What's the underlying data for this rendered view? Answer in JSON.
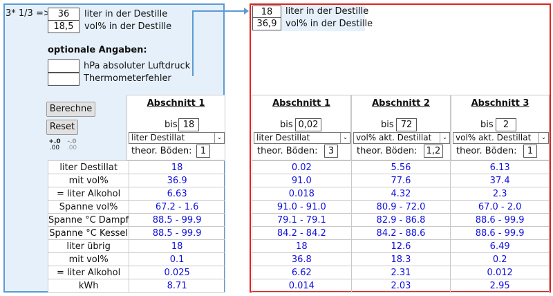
{
  "left": {
    "prefix": "3* 1/3 =>",
    "liter_value": "36",
    "liter_label": "liter in der Destille",
    "vol_value": "18,5",
    "vol_label": "vol% in der Destille",
    "optional_title": "optionale Angaben:",
    "pressure_value": "",
    "pressure_label": "hPa absoluter Luftdruck",
    "thermo_value": "",
    "thermo_label": "Thermometerfehler",
    "btn_calc": "Berechne",
    "btn_reset": "Reset",
    "icon_more_decimals": "+.0\n.00",
    "icon_less_decimals": "-.0\n.00",
    "section": {
      "title": "Abschnitt 1",
      "bis_label": "bis",
      "bis_value": "18",
      "select": "liter Destillat",
      "boeden_label": "theor. Böden:",
      "boeden_value": "1"
    },
    "rows": [
      {
        "label": "liter Destillat",
        "value": "18"
      },
      {
        "label": "mit vol%",
        "value": "36.9"
      },
      {
        "label": "= liter Alkohol",
        "value": "6.63"
      },
      {
        "label": "Spanne vol%",
        "value": "67.2 - 1.6"
      },
      {
        "label": "Spanne °C Dampf",
        "value": "88.5 - 99.9"
      },
      {
        "label": "Spanne °C Kessel",
        "value": "88.5 - 99.9"
      },
      {
        "label": "liter übrig",
        "value": "18"
      },
      {
        "label": "mit vol%",
        "value": "0.1"
      },
      {
        "label": "= liter Alkohol",
        "value": "0.025"
      },
      {
        "label": "kWh",
        "value": "8.71"
      }
    ]
  },
  "right": {
    "liter_value": "18",
    "liter_label": "liter in der Destille",
    "vol_value": "36,9",
    "vol_label": "vol% in der Destille",
    "sections": [
      {
        "title": "Abschnitt 1",
        "bis_label": "bis",
        "bis_value": "0,02",
        "select": "liter Destillat",
        "boeden_label": "theor. Böden:",
        "boeden_value": "3"
      },
      {
        "title": "Abschnitt 2",
        "bis_label": "bis",
        "bis_value": "72",
        "select": "vol% akt. Destillat",
        "boeden_label": "theor. Böden:",
        "boeden_value": "1,2"
      },
      {
        "title": "Abschnitt 3",
        "bis_label": "bis",
        "bis_value": "2",
        "select": "vol% akt. Destillat",
        "boeden_label": "theor. Böden:",
        "boeden_value": "1"
      }
    ],
    "rows": [
      [
        "0.02",
        "5.56",
        "6.13"
      ],
      [
        "91.0",
        "77.6",
        "37.4"
      ],
      [
        "0.018",
        "4.32",
        "2.3"
      ],
      [
        "91.0 - 91.0",
        "80.9 - 72.0",
        "67.0 - 2.0"
      ],
      [
        "79.1 - 79.1",
        "82.9 - 86.8",
        "88.6 - 99.9"
      ],
      [
        "84.2 - 84.2",
        "84.2 - 88.6",
        "88.6 - 99.9"
      ],
      [
        "18",
        "12.6",
        "6.49"
      ],
      [
        "36.8",
        "18.3",
        "0.2"
      ],
      [
        "6.62",
        "2.31",
        "0.012"
      ],
      [
        "0.014",
        "2.03",
        "2.95"
      ]
    ]
  },
  "colors": {
    "left_border": "#5b9bd5",
    "right_border": "#e3201b",
    "value_text": "#1010e0"
  }
}
